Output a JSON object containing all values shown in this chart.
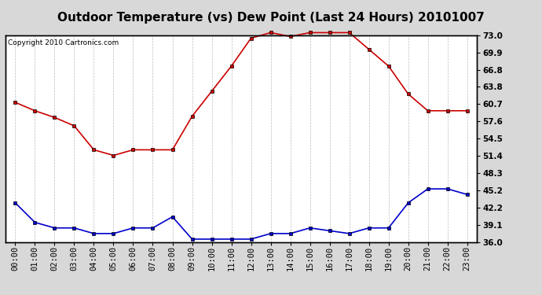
{
  "title": "Outdoor Temperature (vs) Dew Point (Last 24 Hours) 20101007",
  "copyright": "Copyright 2010 Cartronics.com",
  "x_labels": [
    "00:00",
    "01:00",
    "02:00",
    "03:00",
    "04:00",
    "05:00",
    "06:00",
    "07:00",
    "08:00",
    "09:00",
    "10:00",
    "11:00",
    "12:00",
    "13:00",
    "14:00",
    "15:00",
    "16:00",
    "17:00",
    "18:00",
    "19:00",
    "20:00",
    "21:00",
    "22:00",
    "23:00"
  ],
  "temp_data": [
    61.0,
    59.5,
    58.3,
    56.8,
    52.5,
    51.5,
    52.5,
    52.5,
    52.5,
    58.5,
    63.0,
    67.5,
    72.5,
    73.5,
    72.8,
    73.5,
    73.5,
    73.5,
    70.5,
    67.5,
    62.5,
    59.5,
    59.5,
    59.5
  ],
  "dew_data": [
    43.0,
    39.5,
    38.5,
    38.5,
    37.5,
    37.5,
    38.5,
    38.5,
    40.5,
    36.5,
    36.5,
    36.5,
    36.5,
    37.5,
    37.5,
    38.5,
    38.0,
    37.5,
    38.5,
    38.5,
    43.0,
    45.5,
    45.5,
    44.5
  ],
  "temp_color": "#cc0000",
  "dew_color": "#0000cc",
  "bg_color": "#d8d8d8",
  "plot_bg_color": "#ffffff",
  "grid_color": "#bbbbbb",
  "ylim_min": 36.0,
  "ylim_max": 73.0,
  "yticks": [
    36.0,
    39.1,
    42.2,
    45.2,
    48.3,
    51.4,
    54.5,
    57.6,
    60.7,
    63.8,
    66.8,
    69.9,
    73.0
  ],
  "title_fontsize": 11,
  "copyright_fontsize": 6.5,
  "tick_fontsize": 7.5,
  "marker_size": 3.5,
  "line_width": 1.2
}
